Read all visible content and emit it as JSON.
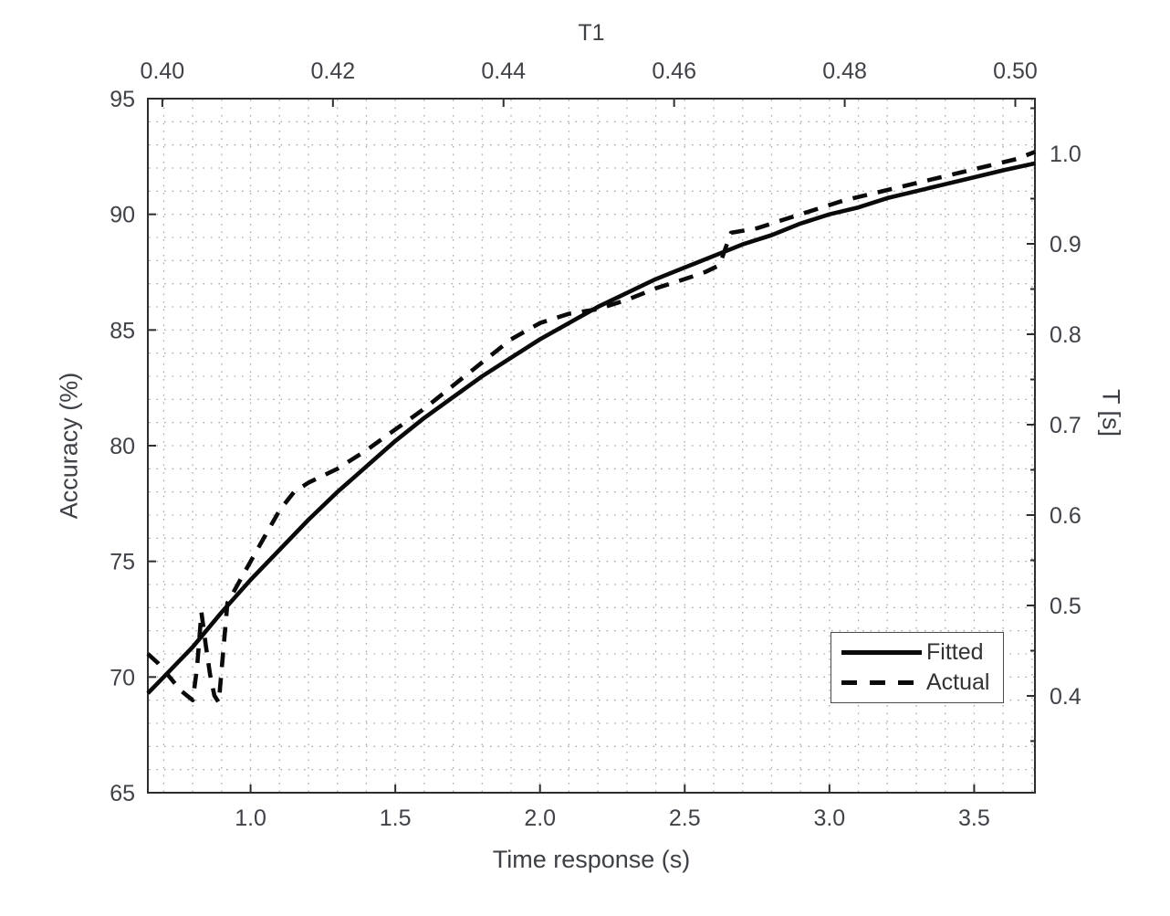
{
  "figure": {
    "background": "#ffffff"
  },
  "chart_data": {
    "type": "line",
    "title": "T1",
    "xlabel_bottom": "Time response (s)",
    "xlabel_top": "T1",
    "ylabel_left": "Accuracy (%)",
    "ylabel_right": "T [s]",
    "grid": "dotted minor grid on",
    "colors": {
      "axis": "#2d2d2d",
      "tick_label": "#3f4247",
      "grid": "#a8abb0",
      "series": "#0a0a0a",
      "background": "#ffffff"
    },
    "axes": {
      "bottom": {
        "range": [
          0.645,
          3.71
        ],
        "ticks": [
          1.0,
          1.5,
          2.0,
          2.5,
          3.0,
          3.5
        ],
        "tick_labels": [
          "1.0",
          "1.5",
          "2.0",
          "2.5",
          "3.0",
          "3.5"
        ],
        "minor_grid_step": 0.1
      },
      "top": {
        "range": [
          0.3983,
          0.5023
        ],
        "ticks": [
          0.4,
          0.42,
          0.44,
          0.46,
          0.48,
          0.5
        ],
        "tick_labels": [
          "0.40",
          "0.42",
          "0.44",
          "0.46",
          "0.48",
          "0.50"
        ]
      },
      "left": {
        "range": [
          65,
          95
        ],
        "ticks": [
          65,
          70,
          75,
          80,
          85,
          90,
          95
        ],
        "tick_labels": [
          "65",
          "70",
          "75",
          "80",
          "85",
          "90",
          "95"
        ],
        "minor_grid_step": 1
      },
      "right": {
        "range": [
          0.2929,
          1.0606
        ],
        "ticks": [
          0.4,
          0.5,
          0.6,
          0.7,
          0.8,
          0.9,
          1.0
        ],
        "tick_labels": [
          "0.4",
          "0.5",
          "0.6",
          "0.7",
          "0.8",
          "0.9",
          "1.0"
        ],
        "minor_tick_step": 0.05
      }
    },
    "legend": {
      "position": "southeast",
      "entries": [
        {
          "label": "Fitted",
          "style": "solid"
        },
        {
          "label": "Actual",
          "style": "dashed"
        }
      ]
    },
    "series": [
      {
        "name": "Fitted",
        "style": "solid",
        "color": "#0a0a0a",
        "points": [
          [
            0.645,
            69.3
          ],
          [
            0.7,
            70.0
          ],
          [
            0.8,
            71.3
          ],
          [
            0.9,
            72.8
          ],
          [
            1.0,
            74.2
          ],
          [
            1.1,
            75.5
          ],
          [
            1.2,
            76.8
          ],
          [
            1.3,
            78.0
          ],
          [
            1.4,
            79.1
          ],
          [
            1.5,
            80.2
          ],
          [
            1.6,
            81.2
          ],
          [
            1.7,
            82.1
          ],
          [
            1.8,
            83.0
          ],
          [
            1.9,
            83.8
          ],
          [
            2.0,
            84.6
          ],
          [
            2.1,
            85.3
          ],
          [
            2.2,
            86.0
          ],
          [
            2.3,
            86.6
          ],
          [
            2.4,
            87.2
          ],
          [
            2.5,
            87.7
          ],
          [
            2.6,
            88.2
          ],
          [
            2.7,
            88.7
          ],
          [
            2.8,
            89.1
          ],
          [
            2.9,
            89.6
          ],
          [
            3.0,
            90.0
          ],
          [
            3.1,
            90.3
          ],
          [
            3.2,
            90.7
          ],
          [
            3.3,
            91.0
          ],
          [
            3.4,
            91.3
          ],
          [
            3.5,
            91.6
          ],
          [
            3.6,
            91.9
          ],
          [
            3.71,
            92.2
          ]
        ]
      },
      {
        "name": "Actual",
        "style": "dashed",
        "color": "#0a0a0a",
        "points": [
          [
            0.645,
            71.0
          ],
          [
            0.68,
            70.6
          ],
          [
            0.72,
            70.0
          ],
          [
            0.76,
            69.4
          ],
          [
            0.8,
            69.0
          ],
          [
            0.815,
            70.4
          ],
          [
            0.83,
            72.8
          ],
          [
            0.845,
            71.4
          ],
          [
            0.86,
            70.1
          ],
          [
            0.875,
            69.2
          ],
          [
            0.89,
            68.9
          ],
          [
            0.92,
            73.2
          ],
          [
            0.96,
            74.1
          ],
          [
            1.0,
            75.0
          ],
          [
            1.05,
            76.1
          ],
          [
            1.1,
            77.2
          ],
          [
            1.15,
            78.0
          ],
          [
            1.2,
            78.4
          ],
          [
            1.3,
            79.0
          ],
          [
            1.4,
            79.8
          ],
          [
            1.5,
            80.7
          ],
          [
            1.6,
            81.6
          ],
          [
            1.7,
            82.6
          ],
          [
            1.8,
            83.6
          ],
          [
            1.9,
            84.6
          ],
          [
            2.0,
            85.3
          ],
          [
            2.1,
            85.7
          ],
          [
            2.2,
            85.9
          ],
          [
            2.3,
            86.3
          ],
          [
            2.4,
            86.8
          ],
          [
            2.5,
            87.2
          ],
          [
            2.57,
            87.5
          ],
          [
            2.62,
            87.8
          ],
          [
            2.66,
            89.2
          ],
          [
            2.75,
            89.4
          ],
          [
            2.85,
            89.8
          ],
          [
            2.95,
            90.2
          ],
          [
            3.05,
            90.6
          ],
          [
            3.15,
            90.9
          ],
          [
            3.25,
            91.2
          ],
          [
            3.35,
            91.5
          ],
          [
            3.45,
            91.8
          ],
          [
            3.55,
            92.1
          ],
          [
            3.65,
            92.4
          ],
          [
            3.71,
            92.7
          ]
        ]
      }
    ]
  }
}
